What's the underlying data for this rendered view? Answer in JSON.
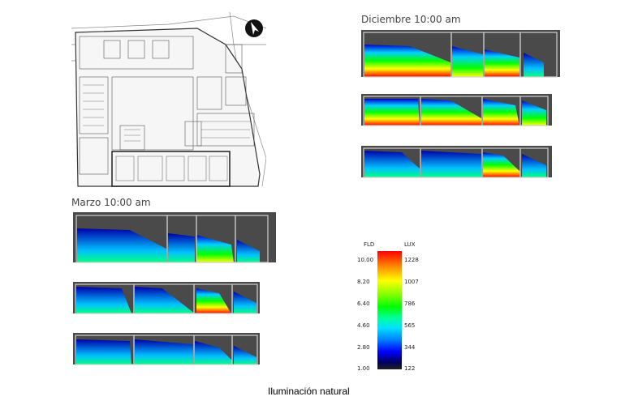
{
  "floor_plan": {
    "north_icon": "north-arrow-icon"
  },
  "diciembre": {
    "label": "Diciembre 10:00 am"
  },
  "marzo": {
    "label": "Marzo 10:00 am"
  },
  "legend": {
    "fld_header": "FLD",
    "lux_header": "LUX",
    "fld_values": [
      "10.00",
      "8.20",
      "6.40",
      "4.60",
      "2.80",
      "1.00"
    ],
    "lux_values": [
      "1228",
      "1007",
      "786",
      "565",
      "344",
      "122"
    ]
  },
  "caption": "Iluminación natural",
  "colors": {
    "scale": [
      "#ff0000",
      "#ffff00",
      "#00ff00",
      "#00e0ff",
      "#0000ff",
      "#101030"
    ]
  }
}
